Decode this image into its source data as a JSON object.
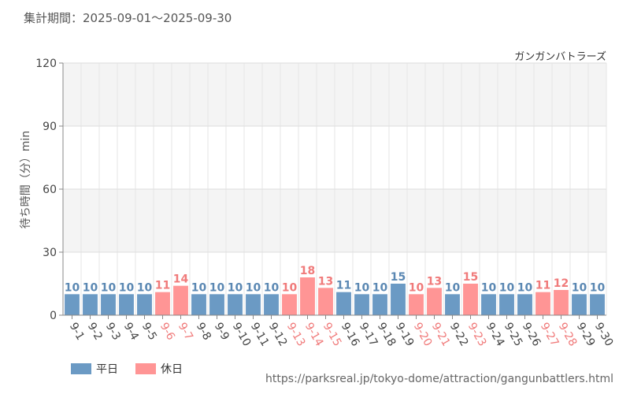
{
  "header": {
    "period": "集計期間：2025-09-01～2025-09-30",
    "attraction": "ガンガンバトラーズ"
  },
  "colors": {
    "weekday": "#6b9ac4",
    "holiday": "#ff9595",
    "weekday_text": "#5b88b3",
    "holiday_text": "#f07a7a",
    "band": "#f4f4f4",
    "grid": "#dddddd"
  },
  "legend": {
    "weekday": "平日",
    "holiday": "休日"
  },
  "source": "https://parksreal.jp/tokyo-dome/attraction/gangunbattlers.html",
  "chart_data": {
    "type": "bar",
    "title": "ガンガンバトラーズ",
    "xlabel": "",
    "ylabel": "待ち時間（分）min",
    "ylim": [
      0,
      120
    ],
    "yticks": [
      0,
      30,
      60,
      90,
      120
    ],
    "categories": [
      "9-1",
      "9-2",
      "9-3",
      "9-4",
      "9-5",
      "9-6",
      "9-7",
      "9-8",
      "9-9",
      "9-10",
      "9-11",
      "9-12",
      "9-13",
      "9-14",
      "9-15",
      "9-16",
      "9-17",
      "9-18",
      "9-19",
      "9-20",
      "9-21",
      "9-22",
      "9-23",
      "9-24",
      "9-25",
      "9-26",
      "9-27",
      "9-28",
      "9-29",
      "9-30"
    ],
    "values": [
      10,
      10,
      10,
      10,
      10,
      11,
      14,
      10,
      10,
      10,
      10,
      10,
      10,
      18,
      13,
      11,
      10,
      10,
      15,
      10,
      13,
      10,
      15,
      10,
      10,
      10,
      11,
      12,
      10,
      10
    ],
    "holiday": [
      false,
      false,
      false,
      false,
      false,
      true,
      true,
      false,
      false,
      false,
      false,
      false,
      true,
      true,
      true,
      false,
      false,
      false,
      false,
      true,
      true,
      false,
      true,
      false,
      false,
      false,
      true,
      true,
      false,
      false
    ],
    "legend": [
      "平日",
      "休日"
    ]
  }
}
